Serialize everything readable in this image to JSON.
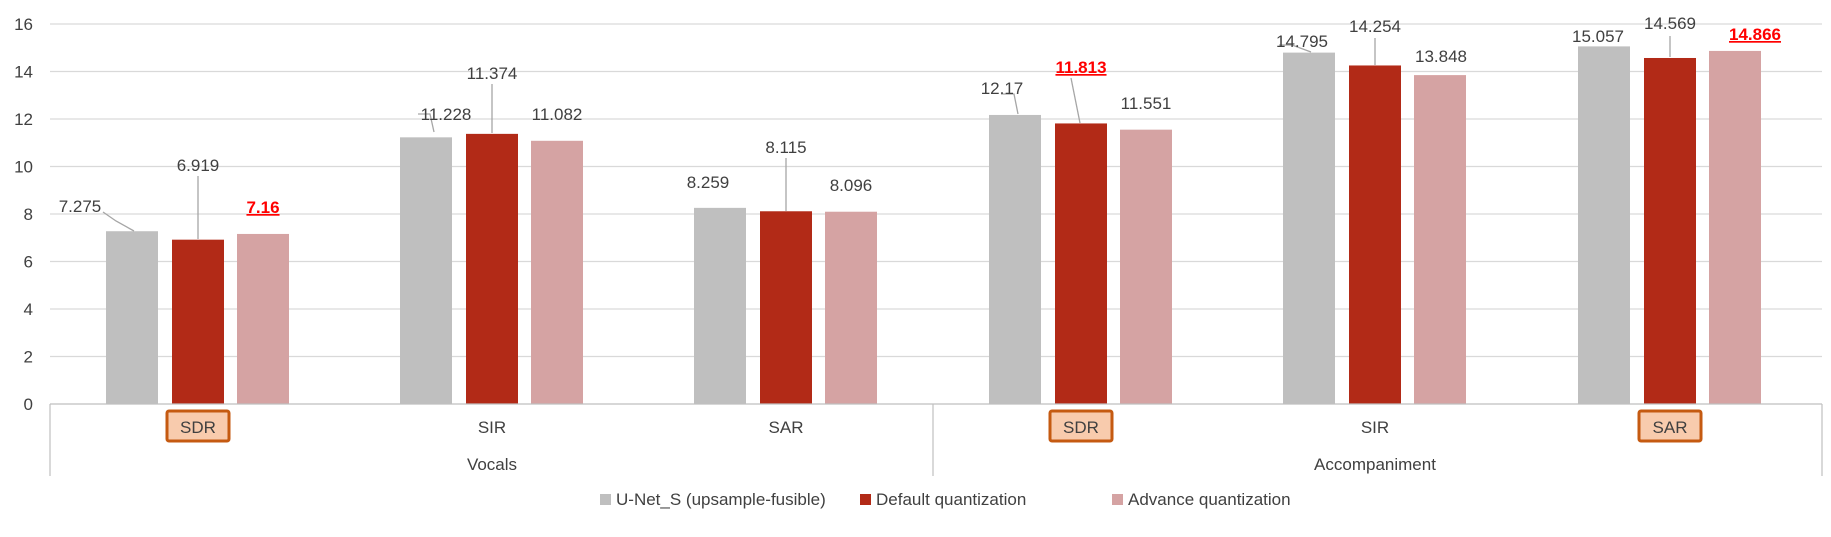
{
  "chart_data": {
    "type": "bar",
    "title": "",
    "xlabel": "",
    "ylabel": "",
    "ylim": [
      0,
      16
    ],
    "yticks": [
      0,
      2,
      4,
      6,
      8,
      10,
      12,
      14,
      16
    ],
    "grid": true,
    "legend_position": "bottom",
    "groups": [
      {
        "name": "Vocals",
        "categories": [
          "SDR",
          "SIR",
          "SAR"
        ]
      },
      {
        "name": "Accompaniment",
        "categories": [
          "SDR",
          "SIR",
          "SAR"
        ]
      }
    ],
    "highlighted_categories": [
      0,
      3,
      5
    ],
    "series": [
      {
        "name": "U-Net_S (upsample-fusible)",
        "color": "#bfbfbf",
        "values": [
          7.275,
          11.228,
          8.259,
          12.17,
          14.795,
          15.057
        ],
        "labels": [
          "7.275",
          "11.228",
          "8.259",
          "12.17",
          "14.795",
          "15.057"
        ]
      },
      {
        "name": "Default quantization",
        "color": "#b22a17",
        "values": [
          6.919,
          11.374,
          8.115,
          11.813,
          14.254,
          14.569
        ],
        "labels": [
          "6.919",
          "11.374",
          "8.115",
          "11.813",
          "14.254",
          "14.569"
        ],
        "emphasized_labels": [
          3
        ]
      },
      {
        "name": "Advance quantization",
        "color": "#d5a3a3",
        "values": [
          7.16,
          11.082,
          8.096,
          11.551,
          13.848,
          14.866
        ],
        "labels": [
          "7.16",
          "11.082",
          "8.096",
          "11.551",
          "13.848",
          "14.866"
        ],
        "emphasized_labels": [
          0,
          5
        ]
      }
    ]
  },
  "colors": {
    "axis_text": "#404040",
    "gridline": "#d9d9d9",
    "emphasis_label": "#ff0000",
    "highlight_box_fill": "#f8cbad",
    "highlight_box_border": "#c55a11"
  }
}
